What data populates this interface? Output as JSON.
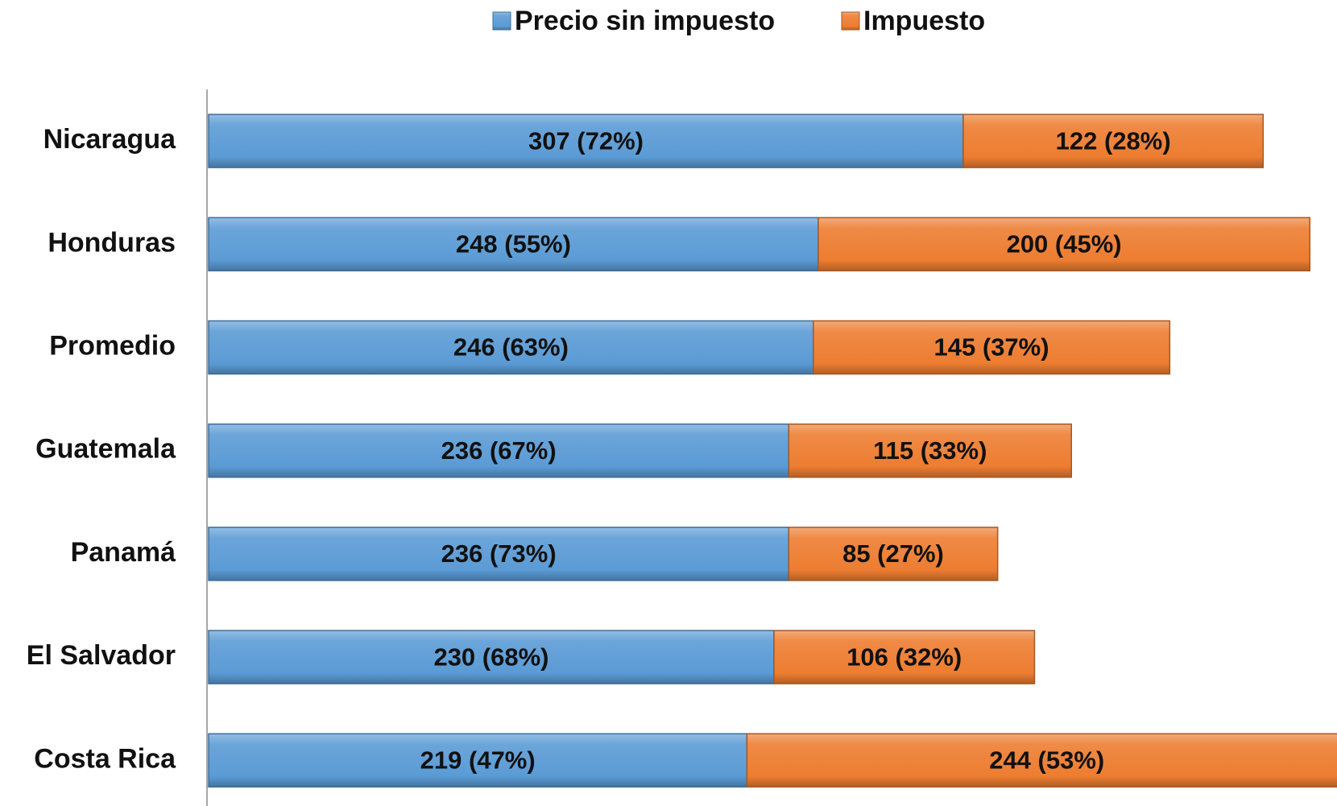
{
  "chart_data": {
    "type": "stacked-bar-horizontal",
    "categories": [
      "Nicaragua",
      "Honduras",
      "Promedio",
      "Guatemala",
      "Panamá",
      "El Salvador",
      "Costa Rica"
    ],
    "series": [
      {
        "name": "Precio sin impuesto",
        "color": "#5b9bd5",
        "values": [
          307,
          248,
          246,
          236,
          236,
          230,
          219
        ],
        "value_labels": [
          "307 (72%)",
          "248 (55%)",
          "246 (63%)",
          "236 (67%)",
          "236 (73%)",
          "230 (68%)",
          "219 (47%)"
        ]
      },
      {
        "name": "Impuesto",
        "color": "#ed7d31",
        "values": [
          122,
          200,
          145,
          115,
          85,
          106,
          244
        ],
        "value_labels": [
          "122 (28%)",
          "200 (45%)",
          "145 (37%)",
          "115 (33%)",
          "85 (27%)",
          "106 (32%)",
          "244 (53%)"
        ]
      }
    ],
    "legend": "top"
  }
}
